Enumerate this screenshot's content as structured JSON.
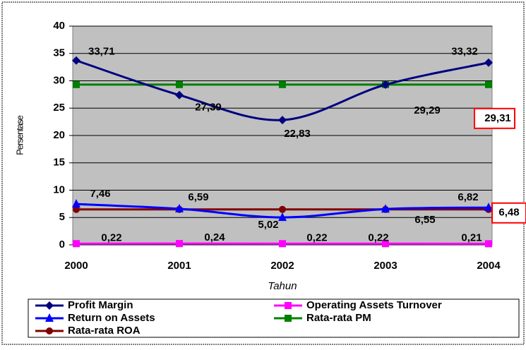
{
  "chart_data": {
    "type": "line",
    "x_label": "Tahun",
    "y_label": "Persentase",
    "categories": [
      "2000",
      "2001",
      "2002",
      "2003",
      "2004"
    ],
    "ylim": [
      0,
      40
    ],
    "yticks": [
      0,
      5,
      10,
      15,
      20,
      25,
      30,
      35,
      40
    ],
    "grid": true,
    "series": [
      {
        "name": "Profit Margin",
        "color": "#000080",
        "marker": "diamond",
        "smooth": true,
        "values": [
          33.71,
          27.39,
          22.83,
          29.29,
          33.32
        ],
        "value_labels": [
          "33,71",
          "27,39",
          "22,83",
          "29,29",
          "33,32"
        ]
      },
      {
        "name": "Operating Assets Turnover",
        "color": "#ff00ff",
        "marker": "square",
        "smooth": false,
        "values": [
          0.22,
          0.24,
          0.22,
          0.22,
          0.21
        ],
        "value_labels": [
          "0,22",
          "0,24",
          "0,22",
          "0,22",
          "0,21"
        ]
      },
      {
        "name": "Return on Assets",
        "color": "#0000ff",
        "marker": "triangle",
        "smooth": true,
        "values": [
          7.46,
          6.59,
          5.02,
          6.55,
          6.82
        ],
        "value_labels": [
          "7,46",
          "6,59",
          "5,02",
          "6,55",
          "6,82"
        ]
      },
      {
        "name": "Rata-rata PM",
        "color": "#008000",
        "marker": "square",
        "smooth": false,
        "values": [
          29.31,
          29.31,
          29.31,
          29.31,
          29.31
        ],
        "value_labels": [
          null,
          null,
          null,
          null,
          "29,31"
        ]
      },
      {
        "name": "Rata-rata ROA",
        "color": "#800000",
        "marker": "circle",
        "smooth": false,
        "values": [
          6.48,
          6.48,
          6.48,
          6.48,
          6.48
        ],
        "value_labels": [
          null,
          null,
          null,
          null,
          "6,48"
        ]
      }
    ]
  }
}
